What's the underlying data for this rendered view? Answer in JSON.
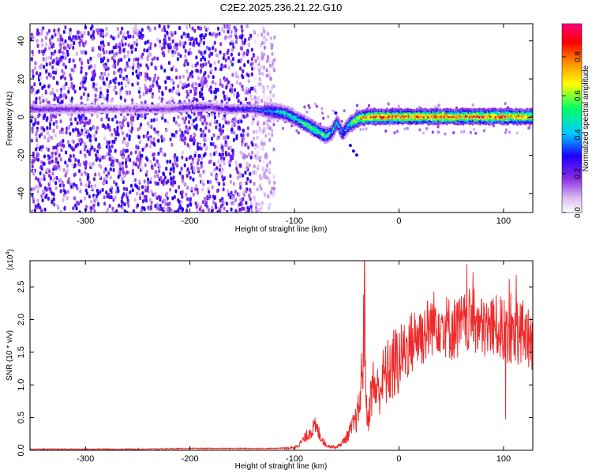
{
  "title": "C2E2.2025.236.21.22.G10",
  "chart_data": [
    {
      "type": "heatmap",
      "title": "C2E2.2025.236.21.22.G10",
      "xlabel": "Height of straight line (km)",
      "ylabel": "Frequency (Hz)",
      "xlim": [
        -353,
        128
      ],
      "ylim": [
        -50,
        49
      ],
      "xticks": [
        -300,
        -200,
        -100,
        0,
        100
      ],
      "yticks": [
        -40,
        -20,
        0,
        20,
        40
      ],
      "colorbar": {
        "label": "Normalized spectral amplitude",
        "range": [
          0.0,
          0.97
        ],
        "ticks": [
          "0.0",
          "0.2",
          "0.4",
          "0.6",
          "0.8"
        ],
        "colors": [
          "#ffffff",
          "#8a2be2",
          "#1e00ff",
          "#00ccff",
          "#00ff66",
          "#ffff00",
          "#ff8800",
          "#ff0000",
          "#ff0080"
        ]
      },
      "ridge": {
        "x": [
          -320,
          -300,
          -280,
          -260,
          -240,
          -220,
          -200,
          -180,
          -160,
          -140,
          -125,
          -110,
          -100,
          -90,
          -80,
          -75,
          -70,
          -65,
          -60,
          -55,
          -50,
          -45,
          -40,
          -30,
          -20,
          -10,
          0,
          20,
          40,
          60,
          80,
          100,
          120
        ],
        "y": [
          5,
          5,
          5,
          5,
          5,
          5,
          6,
          6,
          5,
          5,
          4,
          3,
          0,
          -3,
          -6,
          -8,
          -9,
          -7,
          -2,
          -8,
          -4,
          -2,
          0,
          1,
          1,
          1,
          1,
          1,
          1,
          1,
          1,
          1,
          1
        ],
        "amplitude": [
          0.25,
          0.2,
          0.2,
          0.18,
          0.22,
          0.2,
          0.3,
          0.25,
          0.3,
          0.35,
          0.45,
          0.5,
          0.55,
          0.6,
          0.7,
          0.65,
          0.6,
          0.5,
          0.55,
          0.45,
          0.5,
          0.7,
          0.8,
          0.9,
          0.95,
          0.9,
          0.95,
          0.9,
          0.95,
          0.9,
          0.92,
          0.9,
          0.85
        ]
      },
      "secondary_track": {
        "x": [
          -62,
          -55,
          -48,
          -45,
          -42
        ],
        "y": [
          3,
          -8,
          -14,
          -17,
          -19
        ]
      },
      "noise_region_x": [
        -353,
        -125
      ]
    },
    {
      "type": "line",
      "xlabel": "Height of straight line (km)",
      "ylabel": "SNR (10 * v/v)",
      "multiplier": "(x10",
      "multiplier_exp": "4",
      "multiplier_close": ")",
      "xlim": [
        -353,
        128
      ],
      "ylim": [
        0,
        2.9
      ],
      "xticks": [
        -300,
        -200,
        -100,
        0,
        100
      ],
      "yticks": [
        "0.0",
        "0.5",
        "1.0",
        "1.5",
        "2.0",
        "2.5"
      ],
      "series": [
        {
          "name": "SNR",
          "color": "#ee2a2a",
          "x": [
            -353,
            -300,
            -250,
            -200,
            -150,
            -120,
            -100,
            -95,
            -90,
            -85,
            -80,
            -75,
            -70,
            -65,
            -60,
            -55,
            -50,
            -45,
            -40,
            -37,
            -35,
            -33,
            -31,
            -30,
            -28,
            -25,
            -20,
            -15,
            -10,
            -5,
            0,
            5,
            10,
            15,
            20,
            25,
            30,
            35,
            40,
            50,
            60,
            70,
            80,
            90,
            100,
            110,
            120,
            128
          ],
          "values": [
            0.01,
            0.01,
            0.01,
            0.02,
            0.02,
            0.02,
            0.04,
            0.1,
            0.18,
            0.3,
            0.35,
            0.22,
            0.08,
            0.06,
            0.05,
            0.1,
            0.2,
            0.35,
            0.5,
            0.8,
            1.3,
            2.2,
            0.6,
            0.4,
            0.7,
            1.0,
            0.9,
            1.1,
            1.2,
            1.3,
            1.4,
            1.5,
            1.6,
            1.7,
            1.75,
            1.8,
            1.9,
            2.0,
            1.95,
            1.85,
            1.9,
            2.0,
            1.85,
            1.9,
            1.85,
            1.8,
            1.8,
            1.7
          ]
        }
      ]
    }
  ]
}
